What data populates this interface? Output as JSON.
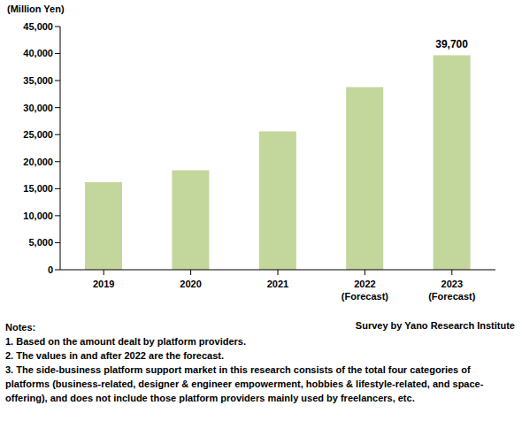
{
  "chart_data": {
    "type": "bar",
    "y_label": "(Million Yen)",
    "categories": [
      "2019",
      "2020",
      "2021",
      "2022\n(Forecast)",
      "2023\n(Forecast)"
    ],
    "values": [
      16200,
      18400,
      25600,
      33800,
      39700
    ],
    "value_labels": [
      null,
      null,
      null,
      null,
      "39,700"
    ],
    "color": "#c3d69b",
    "ylim": [
      0,
      45000
    ],
    "yticks": [
      0,
      {
        "value": 5000,
        "label": "5,000"
      },
      {
        "value": 10000,
        "label": "10,000"
      },
      {
        "value": 15000,
        "label": "15,000"
      },
      {
        "value": 20000,
        "label": "20,000"
      },
      {
        "value": 25000,
        "label": "25,000"
      },
      {
        "value": 30000,
        "label": "30,000"
      },
      {
        "value": 35000,
        "label": "35,000"
      },
      {
        "value": 40000,
        "label": "40,000"
      },
      {
        "value": 45000,
        "label": "45,000"
      }
    ],
    "grid": false,
    "annotations": [
      "Survey by Yano Research Institute"
    ],
    "notes": [
      "Notes:",
      "1. Based on the amount dealt by platform providers.",
      "2. The values in and after 2022 are the forecast.",
      "3. The side-business platform support market in this research consists of the total four categories of platforms (business-related, designer & engineer empowerment, hobbies & lifestyle-related, and space-offering), and does not include those platform providers mainly used by freelancers, etc."
    ]
  }
}
